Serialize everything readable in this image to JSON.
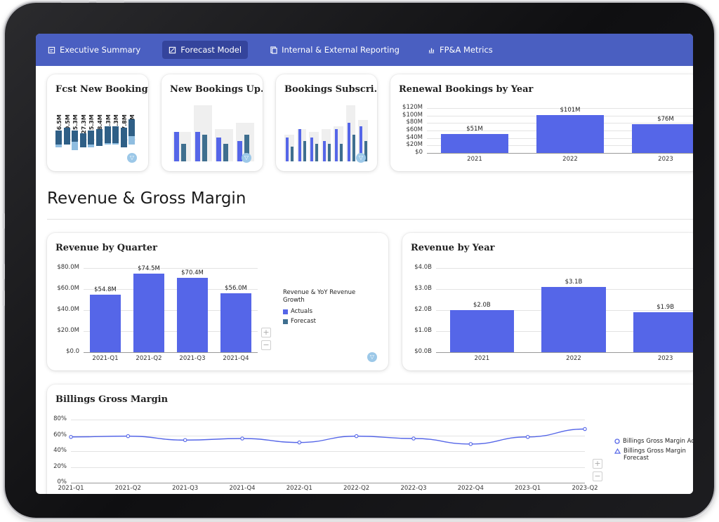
{
  "nav": {
    "tabs": [
      {
        "label": "Executive Summary",
        "icon": "report-icon",
        "active": false
      },
      {
        "label": "Forecast Model",
        "icon": "chart-icon",
        "active": true
      },
      {
        "label": "Internal & External Reporting",
        "icon": "document-icon",
        "active": false
      },
      {
        "label": "FP&A Metrics",
        "icon": "metrics-icon",
        "active": false
      }
    ]
  },
  "cards": {
    "fcst_new_bookings": {
      "title": "Fcst New Booking...",
      "value_labels": [
        "$136.5M",
        "$150.5M",
        "$125.3M",
        "$127.3M",
        "$125.3M",
        "$148.4M",
        "$152.3M",
        "$152.3M",
        "$157.8M",
        "$214.5M"
      ]
    },
    "new_bookings_up": {
      "title": "New Bookings Up..."
    },
    "bookings_subscri": {
      "title": "Bookings Subscri..."
    },
    "renewal_bookings": {
      "title": "Renewal Bookings by Year"
    }
  },
  "section": {
    "title": "Revenue & Gross Margin"
  },
  "revenue_by_quarter": {
    "title": "Revenue by Quarter",
    "legend_title": "Revenue & YoY Revenue Growth",
    "legend": [
      {
        "label": "Actuals",
        "color": "#5566e8"
      },
      {
        "label": "Forecast",
        "color": "#3f6f8f"
      }
    ],
    "zoom_in": "+",
    "zoom_out": "−"
  },
  "revenue_by_year": {
    "title": "Revenue by Year"
  },
  "billings_gross_margin": {
    "title": "Billings Gross Margin",
    "legend": [
      {
        "label": "Billings Gross Margin Act",
        "marker": "circle"
      },
      {
        "label": "Billings Gross Margin Forecast",
        "marker": "triangle"
      }
    ],
    "zoom_in": "+",
    "zoom_out": "−"
  },
  "chart_data": [
    {
      "id": "renewal",
      "type": "bar",
      "title": "Renewal Bookings by Year",
      "categories": [
        "2021",
        "2022",
        "2023"
      ],
      "values": [
        51,
        101,
        76
      ],
      "value_labels": [
        "$51M",
        "$101M",
        "$76M"
      ],
      "yticks": [
        "$0",
        "$20M",
        "$40M",
        "$60M",
        "$80M",
        "$100M",
        "$120M"
      ],
      "ylim": [
        0,
        120
      ],
      "color": "#5566e8"
    },
    {
      "id": "rev_quarter",
      "type": "bar",
      "title": "Revenue by Quarter",
      "categories": [
        "2021-Q1",
        "2021-Q2",
        "2021-Q3",
        "2021-Q4"
      ],
      "values": [
        54.8,
        74.5,
        70.4,
        56.0
      ],
      "value_labels": [
        "$54.8M",
        "$74.5M",
        "$70.4M",
        "$56.0M"
      ],
      "yticks": [
        "$0.0",
        "$20.0M",
        "$40.0M",
        "$60.0M",
        "$80.0M"
      ],
      "ylim": [
        0,
        80
      ],
      "color": "#5566e8"
    },
    {
      "id": "rev_year",
      "type": "bar",
      "title": "Revenue by Year",
      "categories": [
        "2021",
        "2022",
        "2023"
      ],
      "values": [
        2.0,
        3.1,
        1.9
      ],
      "value_labels": [
        "$2.0B",
        "$3.1B",
        "$1.9B"
      ],
      "yticks": [
        "$0.0B",
        "$1.0B",
        "$2.0B",
        "$3.0B",
        "$4.0B"
      ],
      "ylim": [
        0,
        4
      ],
      "color": "#5566e8"
    },
    {
      "id": "billings_gm",
      "type": "line",
      "title": "Billings Gross Margin",
      "categories": [
        "2021-Q1",
        "2021-Q2",
        "2021-Q3",
        "2021-Q4",
        "2022-Q1",
        "2022-Q2",
        "2022-Q3",
        "2022-Q4",
        "2023-Q1",
        "2023-Q2"
      ],
      "values": [
        58,
        59,
        54,
        56,
        51,
        59,
        56,
        49,
        58,
        68
      ],
      "yticks": [
        "0%",
        "20%",
        "40%",
        "60%",
        "80%"
      ],
      "ylim": [
        0,
        80
      ],
      "color": "#5566e8"
    }
  ],
  "mini_charts": {
    "fcst": {
      "light": [
        0.55,
        0.6,
        0.55,
        0.5,
        0.55,
        0.58,
        0.62,
        0.62,
        0.6,
        0.75
      ],
      "dark": [
        0.25,
        0.3,
        0.2,
        0.25,
        0.25,
        0.3,
        0.3,
        0.3,
        0.35,
        0.3
      ]
    },
    "newbook": {
      "ghost": [
        0.5,
        0.95,
        0.55,
        0.65
      ],
      "a": [
        0.5,
        0.5,
        0.4,
        0.35
      ],
      "b": [
        0.3,
        0.45,
        0.3,
        0.45
      ]
    },
    "subscri": {
      "ghost": [
        0.45,
        0.55,
        0.5,
        0.55,
        0.6,
        0.95,
        0.7
      ],
      "a": [
        0.4,
        0.55,
        0.4,
        0.35,
        0.55,
        0.65,
        0.6
      ],
      "b": [
        0.25,
        0.35,
        0.3,
        0.3,
        0.3,
        0.45,
        0.35
      ]
    }
  }
}
